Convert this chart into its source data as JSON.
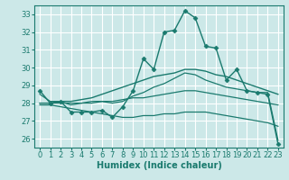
{
  "background_color": "#cce8e8",
  "grid_color": "#ffffff",
  "line_color": "#1a7a6e",
  "xlabel": "Humidex (Indice chaleur)",
  "xlabel_fontsize": 7,
  "tick_fontsize": 6,
  "yticks": [
    26,
    27,
    28,
    29,
    30,
    31,
    32,
    33
  ],
  "xticks": [
    0,
    1,
    2,
    3,
    4,
    5,
    6,
    7,
    8,
    9,
    10,
    11,
    12,
    13,
    14,
    15,
    16,
    17,
    18,
    19,
    20,
    21,
    22,
    23
  ],
  "xlim": [
    -0.5,
    23.5
  ],
  "ylim": [
    25.5,
    33.5
  ],
  "series": [
    {
      "x": [
        0,
        1,
        2,
        3,
        4,
        5,
        6,
        7,
        8,
        9,
        10,
        11,
        12,
        13,
        14,
        15,
        16,
        17,
        18,
        19,
        20,
        21,
        22,
        23
      ],
      "y": [
        28.7,
        28.0,
        28.1,
        27.5,
        27.5,
        27.5,
        27.6,
        27.2,
        27.8,
        28.7,
        30.5,
        29.9,
        32.0,
        32.1,
        33.2,
        32.8,
        31.2,
        31.1,
        29.3,
        29.9,
        28.7,
        28.6,
        28.5,
        25.7
      ],
      "marker": "D",
      "markersize": 2.5,
      "linewidth": 1.0
    },
    {
      "x": [
        0,
        1,
        2,
        3,
        4,
        5,
        6,
        7,
        8,
        9,
        10,
        11,
        12,
        13,
        14,
        15,
        16,
        17,
        18,
        19,
        20,
        21,
        22,
        23
      ],
      "y": [
        28.0,
        28.0,
        28.1,
        28.1,
        28.2,
        28.3,
        28.5,
        28.7,
        28.9,
        29.1,
        29.3,
        29.5,
        29.6,
        29.7,
        29.9,
        29.9,
        29.8,
        29.6,
        29.5,
        29.3,
        29.1,
        28.9,
        28.7,
        28.5
      ],
      "marker": null,
      "markersize": 0,
      "linewidth": 1.0
    },
    {
      "x": [
        0,
        1,
        2,
        3,
        4,
        5,
        6,
        7,
        8,
        9,
        10,
        11,
        12,
        13,
        14,
        15,
        16,
        17,
        18,
        19,
        20,
        21,
        22,
        23
      ],
      "y": [
        27.9,
        27.9,
        27.8,
        27.7,
        27.6,
        27.5,
        27.4,
        27.3,
        27.2,
        27.2,
        27.3,
        27.3,
        27.4,
        27.4,
        27.5,
        27.5,
        27.5,
        27.4,
        27.3,
        27.2,
        27.1,
        27.0,
        26.9,
        26.7
      ],
      "marker": null,
      "markersize": 0,
      "linewidth": 0.9
    },
    {
      "x": [
        0,
        1,
        2,
        3,
        4,
        5,
        6,
        7,
        8,
        9,
        10,
        11,
        12,
        13,
        14,
        15,
        16,
        17,
        18,
        19,
        20,
        21,
        22,
        23
      ],
      "y": [
        28.0,
        28.0,
        28.0,
        28.0,
        28.0,
        28.0,
        28.1,
        28.1,
        28.2,
        28.3,
        28.3,
        28.4,
        28.5,
        28.6,
        28.7,
        28.7,
        28.6,
        28.5,
        28.4,
        28.3,
        28.2,
        28.1,
        28.0,
        27.9
      ],
      "marker": null,
      "markersize": 0,
      "linewidth": 0.9
    },
    {
      "x": [
        0,
        1,
        2,
        3,
        4,
        5,
        6,
        7,
        8,
        9,
        10,
        11,
        12,
        13,
        14,
        15,
        16,
        17,
        18,
        19,
        20,
        21,
        22,
        23
      ],
      "y": [
        28.5,
        28.1,
        28.1,
        27.9,
        28.0,
        28.1,
        28.1,
        28.0,
        28.1,
        28.4,
        28.6,
        28.9,
        29.1,
        29.4,
        29.7,
        29.6,
        29.3,
        29.1,
        28.9,
        28.8,
        28.7,
        28.6,
        28.6,
        25.9
      ],
      "marker": null,
      "markersize": 0,
      "linewidth": 0.9
    }
  ]
}
